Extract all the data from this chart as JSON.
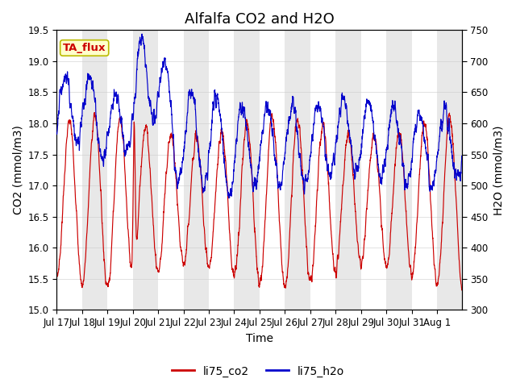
{
  "title": "Alfalfa CO2 and H2O",
  "xlabel": "Time",
  "ylabel_left": "CO2 (mmol/m3)",
  "ylabel_right": "H2O (mmol/m3)",
  "annotation": "TA_flux",
  "ylim_left": [
    15.0,
    19.5
  ],
  "ylim_right": [
    300,
    750
  ],
  "yticks_left": [
    15.0,
    15.5,
    16.0,
    16.5,
    17.0,
    17.5,
    18.0,
    18.5,
    19.0,
    19.5
  ],
  "yticks_right": [
    300,
    350,
    400,
    450,
    500,
    550,
    600,
    650,
    700,
    750
  ],
  "bg_band_color": "#e8e8e8",
  "line_co2_color": "#cc0000",
  "line_h2o_color": "#0000cc",
  "legend_co2": "li75_co2",
  "legend_h2o": "li75_h2o",
  "annotation_bg": "#ffffcc",
  "annotation_border": "#bbbb00",
  "annotation_text_color": "#cc0000",
  "xticklabels": [
    "Jul 17",
    "Jul 18",
    "Jul 19",
    "Jul 20",
    "Jul 21",
    "Jul 22",
    "Jul 23",
    "Jul 24",
    "Jul 25",
    "Jul 26",
    "Jul 27",
    "Jul 28",
    "Jul 29",
    "Jul 30",
    "Jul 31",
    "Aug 1"
  ],
  "n_days": 16,
  "title_fontsize": 13,
  "axis_label_fontsize": 10,
  "tick_fontsize": 8.5
}
